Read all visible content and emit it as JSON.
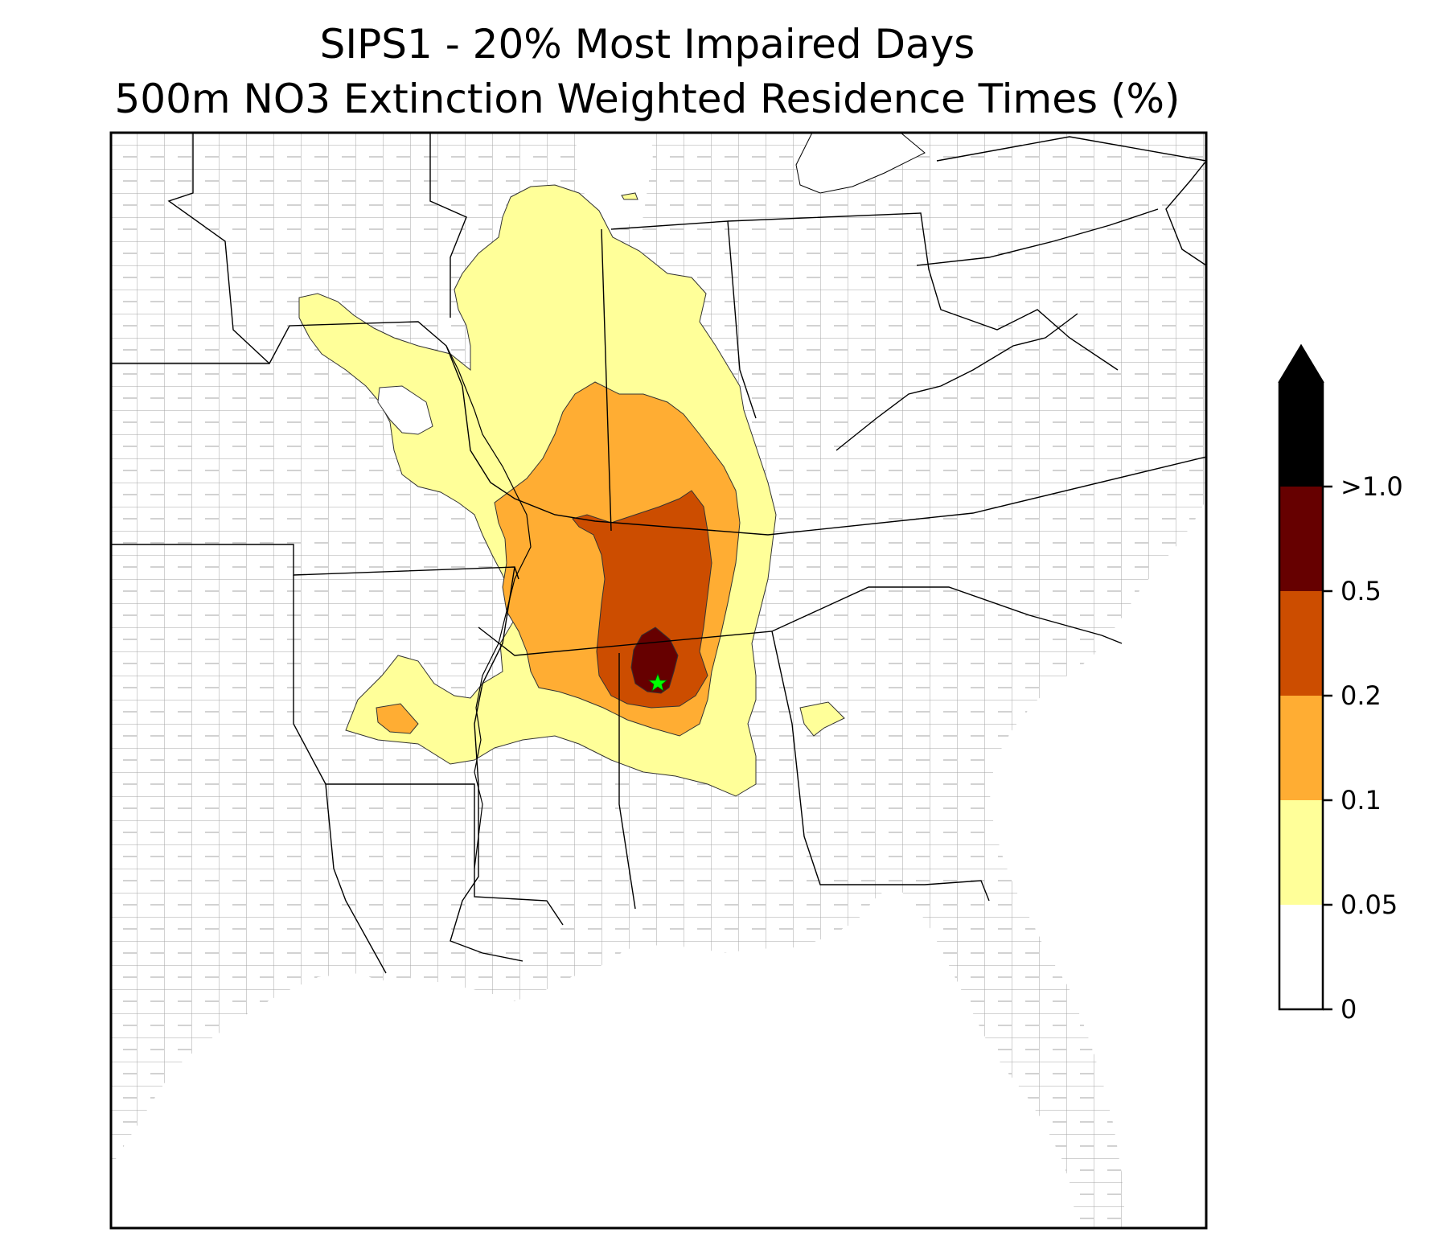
{
  "title": {
    "line1": "SIPS1 - 20% Most Impaired Days",
    "line2": "500m NO3 Extinction Weighted Residence Times (%)"
  },
  "colorbar": {
    "bins": [
      {
        "from": 0,
        "to": 0.05,
        "color": "#ffffff"
      },
      {
        "from": 0.05,
        "to": 0.1,
        "color": "#ffff99"
      },
      {
        "from": 0.1,
        "to": 0.2,
        "color": "#ffad33"
      },
      {
        "from": 0.2,
        "to": 0.5,
        "color": "#cc4d00"
      },
      {
        "from": 0.5,
        "to": 1.0,
        "color": "#660000"
      },
      {
        "from": 1.0,
        "to": null,
        "color": "#000000"
      }
    ],
    "tick_labels": [
      "0",
      "0.05",
      "0.1",
      "0.2",
      "0.5",
      ">1.0"
    ],
    "extend": "max"
  },
  "map": {
    "region": "Southeastern United States",
    "background": "#ffffff",
    "state_border_color": "#000000",
    "county_border_color": "#999999",
    "receptor_marker_color": "#00ff00",
    "receptor_marker": "star"
  }
}
